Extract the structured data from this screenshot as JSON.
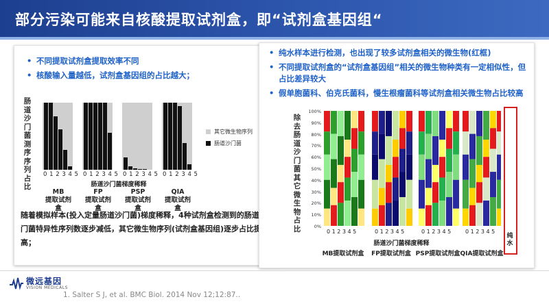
{
  "header": {
    "title": "部分污染可能来自核酸提取试剂盒，即“试剂盒基因组“"
  },
  "left": {
    "bullets": [
      "不同提取试剂盒提取效率不同",
      "核酸输入量越低，试剂盒基因组的占比越大；"
    ],
    "ylabel": "肠道沙门菌测序序列占比",
    "xaxis_title": "肠道沙门菌梯度稀释",
    "kits": [
      {
        "name": "MB",
        "sub": "提取试剂盒",
        "ticks": "0 1 2 3 4 5",
        "values": [
          100,
          100,
          80,
          60,
          30,
          5
        ]
      },
      {
        "name": "FP",
        "sub": "提取试剂盒",
        "ticks": "0 1 2 3 4 5",
        "values": [
          100,
          100,
          100,
          100,
          100,
          55
        ]
      },
      {
        "name": "PSP",
        "sub": "提取试剂盒",
        "ticks": "0 1 2 3 4 5",
        "values": [
          18,
          5,
          2,
          1,
          1,
          0
        ]
      },
      {
        "name": "QIA",
        "sub": "提取试剂盒",
        "ticks": "0 1 2 3 4 5",
        "values": [
          100,
          100,
          100,
          95,
          40,
          8
        ]
      }
    ],
    "legend": [
      {
        "label": "其它微生物序列",
        "color": "#cfcfcf"
      },
      {
        "label": "肠道沙门菌",
        "color": "#111111"
      }
    ],
    "paragraph": "随着模拟样本(投入定量肠道沙门菌)梯度稀释，4种试剂盒检测到的肠道沙门菌特异性序列数逐步减低，其它微生物序列(试剂盒基因组)逐步占比提高；"
  },
  "right": {
    "bullets": [
      "纯水样本进行检测，也出现了较多试剂盒相关的微生物(红框)",
      "不同提取试剂盒的“试剂盒基因组”相关的微生物种类有一定相似性，但占比差异较大",
      "假单胞菌科、伯克氏菌科，慢生根瘤菌科等试剂盒相关微生物占比较高"
    ],
    "ylabel": "除去肠道沙门菌其它微生物占比",
    "xaxis_title": "肠道沙门菌梯度稀释",
    "yticks": [
      "100%",
      "90%",
      "80%",
      "70%",
      "60%",
      "50%",
      "40%",
      "30%",
      "20%",
      "10%",
      "0%"
    ],
    "kits": [
      {
        "name": "MB提取试剂盒",
        "ticks": "0 1 2 3 4 5"
      },
      {
        "name": "FP提取试剂盒",
        "ticks": "0 1 2 3 4 5"
      },
      {
        "name": "PSP提取试剂盒",
        "ticks": "0 1 2 3 4 5"
      },
      {
        "name": "QIA提取试剂盒",
        "ticks": "0 1 2 3 4 5"
      }
    ],
    "water_label": "纯水",
    "highlight_color": "#d62020"
  },
  "footer": {
    "logo_cn": "微远基因",
    "logo_en": "VISION MEDICALS",
    "citation": "1. Salter S J, et al. BMC Biol. 2014 Nov 12;12:87.."
  }
}
